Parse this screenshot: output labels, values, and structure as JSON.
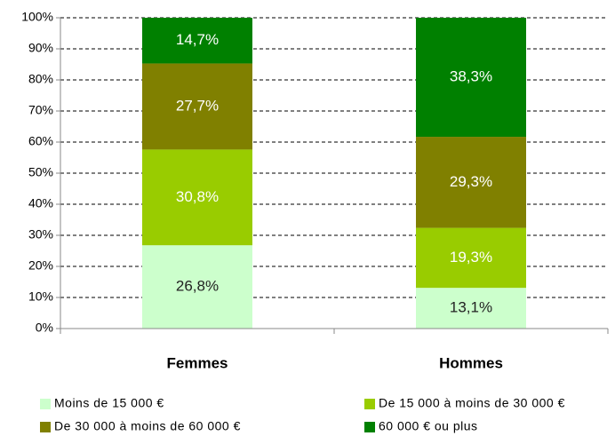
{
  "chart_data": {
    "type": "stacked_bar",
    "categories": [
      "Femmes",
      "Hommes"
    ],
    "series": [
      {
        "name": "Moins de 15 000 €",
        "color": "#ccffcc",
        "values": [
          26.8,
          13.1
        ],
        "value_labels": [
          "26,8%",
          "13,1%"
        ]
      },
      {
        "name": "De 15 000 à moins de 30 000 €",
        "color": "#99cc00",
        "values": [
          30.8,
          19.3
        ],
        "value_labels": [
          "30,8%",
          "19,3%"
        ]
      },
      {
        "name": "De 30 000 à moins de 60 000 €",
        "color": "#808000",
        "values": [
          27.7,
          29.3
        ],
        "value_labels": [
          "27,7%",
          "29,3%"
        ]
      },
      {
        "name": "60 000 € ou plus",
        "color": "#008000",
        "values": [
          14.7,
          38.3
        ],
        "value_labels": [
          "14,7%",
          "38,3%"
        ]
      }
    ],
    "ylim": [
      0,
      100
    ],
    "yticks": [
      {
        "value": 0,
        "label": "0%"
      },
      {
        "value": 10,
        "label": "10%"
      },
      {
        "value": 20,
        "label": "20%"
      },
      {
        "value": 30,
        "label": "30%"
      },
      {
        "value": 40,
        "label": "40%"
      },
      {
        "value": 50,
        "label": "50%"
      },
      {
        "value": 60,
        "label": "60%"
      },
      {
        "value": 70,
        "label": "70%"
      },
      {
        "value": 80,
        "label": "80%"
      },
      {
        "value": 90,
        "label": "90%"
      },
      {
        "value": 100,
        "label": "100%"
      }
    ],
    "grid": true,
    "legend": "bottom"
  }
}
